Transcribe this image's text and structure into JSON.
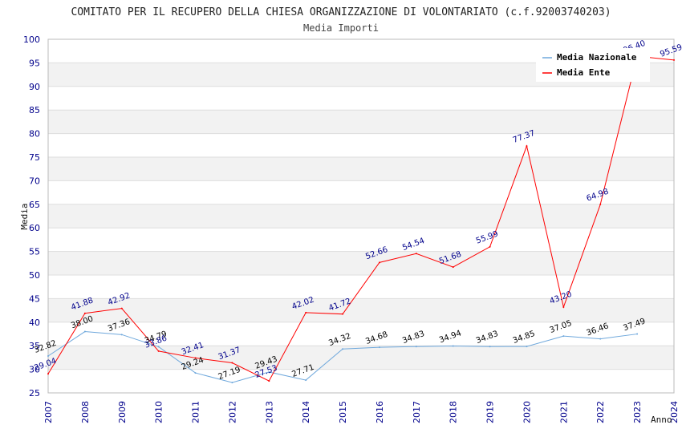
{
  "chart_data": {
    "type": "line",
    "title": "COMITATO PER IL RECUPERO DELLA CHIESA ORGANIZZAZIONE DI VOLONTARIATO (c.f.92003740203)",
    "subtitle": "Media Importi",
    "xlabel": "Anno",
    "ylabel": "Media",
    "ylim": [
      25,
      100
    ],
    "yticks": [
      25,
      30,
      35,
      40,
      45,
      50,
      55,
      60,
      65,
      70,
      75,
      80,
      85,
      90,
      95,
      100
    ],
    "categories": [
      "2007",
      "2008",
      "2009",
      "2010",
      "2011",
      "2012",
      "2013",
      "2014",
      "2015",
      "2016",
      "2017",
      "2018",
      "2019",
      "2020",
      "2021",
      "2022",
      "2023",
      "2024"
    ],
    "grid": true,
    "legend_position": "top-right",
    "series": [
      {
        "name": "Media Nazionale",
        "color": "#6fa8dc",
        "label_color": "#000000",
        "values": [
          32.82,
          38.0,
          37.36,
          34.79,
          29.24,
          27.19,
          29.43,
          27.71,
          34.32,
          34.68,
          34.83,
          34.94,
          34.83,
          34.85,
          37.05,
          36.46,
          37.49,
          null
        ],
        "labels": [
          "32.82",
          "38.00",
          "37.36",
          "34.79",
          "29.24",
          "27.19",
          "29.43",
          "27.71",
          "34.32",
          "34.68",
          "34.83",
          "34.94",
          "34.83",
          "34.85",
          "37.05",
          "36.46",
          "37.49",
          ""
        ]
      },
      {
        "name": "Media Ente",
        "color": "#ff0000",
        "label_color": "#00008b",
        "values": [
          29.04,
          41.88,
          42.92,
          33.86,
          32.41,
          31.37,
          27.53,
          42.02,
          41.72,
          52.66,
          54.54,
          51.68,
          55.99,
          77.37,
          43.2,
          64.98,
          96.4,
          95.59
        ],
        "labels": [
          "29.04",
          "41.88",
          "42.92",
          "33.86",
          "32.41",
          "31.37",
          "27.53",
          "42.02",
          "41.72",
          "52.66",
          "54.54",
          "51.68",
          "55.99",
          "77.37",
          "43.20",
          "64.98",
          "96.40",
          "95.59"
        ]
      }
    ]
  }
}
